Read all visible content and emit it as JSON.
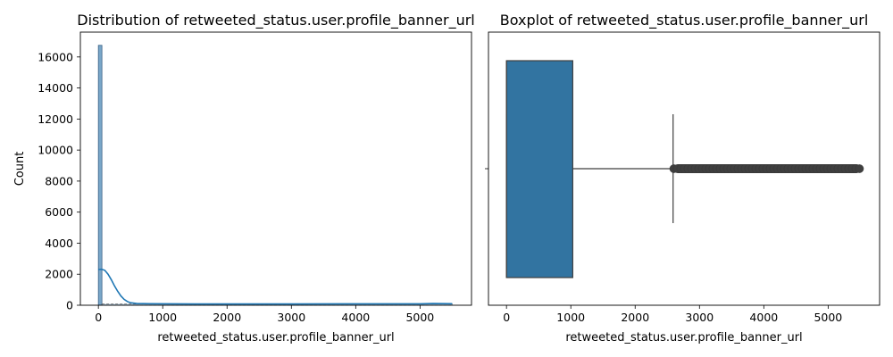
{
  "chart_data": [
    {
      "type": "histogram",
      "title": "Distribution of retweeted_status.user.profile_banner_url",
      "xlabel": "retweeted_status.user.profile_banner_url",
      "ylabel": "Count",
      "xlim": [
        -280,
        5800
      ],
      "ylim": [
        0,
        17600
      ],
      "xticks": [
        0,
        1000,
        2000,
        3000,
        4000,
        5000
      ],
      "yticks": [
        0,
        2000,
        4000,
        6000,
        8000,
        10000,
        12000,
        14000,
        16000
      ],
      "bin_width": 55,
      "bins": [
        {
          "x0": 0,
          "x1": 55,
          "count": 16750
        },
        {
          "x0": 55,
          "x1": 5500,
          "count": 80
        }
      ],
      "kde": [
        [
          0,
          2300
        ],
        [
          50,
          2320
        ],
        [
          100,
          2250
        ],
        [
          150,
          2000
        ],
        [
          200,
          1650
        ],
        [
          250,
          1250
        ],
        [
          300,
          900
        ],
        [
          350,
          600
        ],
        [
          400,
          380
        ],
        [
          450,
          240
        ],
        [
          500,
          160
        ],
        [
          600,
          110
        ],
        [
          800,
          95
        ],
        [
          1500,
          85
        ],
        [
          3000,
          85
        ],
        [
          4000,
          90
        ],
        [
          5000,
          90
        ],
        [
          5200,
          110
        ],
        [
          5500,
          95
        ]
      ],
      "colors": {
        "bar": "#7aa7c9",
        "bar_edge": "#3d6487",
        "kde": "#1f77b4"
      },
      "grid": false
    },
    {
      "type": "boxplot",
      "title": "Boxplot of retweeted_status.user.profile_banner_url",
      "xlabel": "retweeted_status.user.profile_banner_url",
      "xlim": [
        -280,
        5800
      ],
      "xticks": [
        0,
        1000,
        2000,
        3000,
        4000,
        5000
      ],
      "min": 0,
      "q1": 0,
      "median": 0,
      "q3": 1030,
      "whisker_high": 2590,
      "outlier_range": [
        2600,
        5510
      ],
      "colors": {
        "box": "#3274a1",
        "line": "#3f3f3f",
        "outlier": "#3f3f3f"
      },
      "grid": false
    }
  ]
}
